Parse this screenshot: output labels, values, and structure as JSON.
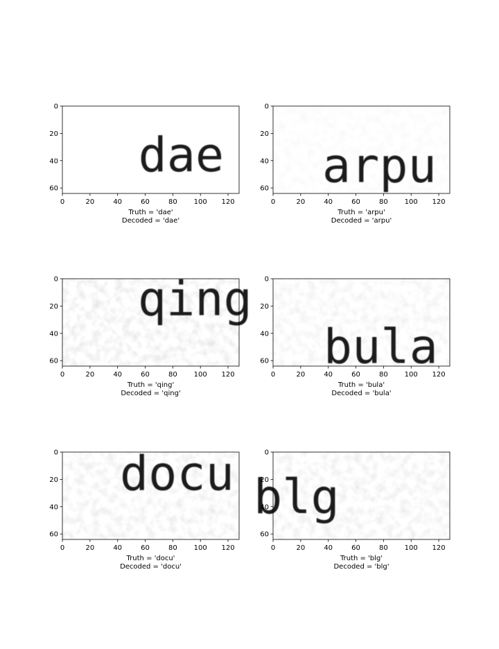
{
  "chart_data": [
    {
      "type": "image",
      "truth_label": "Truth = 'dae'",
      "decoded_label": "Decoded = 'dae'",
      "word": "dae",
      "word_center": [
        86,
        36
      ],
      "word_size": 24,
      "noise": 0.0,
      "xlim": [
        0,
        128
      ],
      "ylim": [
        0,
        64
      ],
      "xticks": [
        0,
        20,
        40,
        60,
        80,
        100,
        120
      ],
      "yticks": [
        0,
        20,
        40,
        60
      ]
    },
    {
      "type": "image",
      "truth_label": "Truth = 'arpu'",
      "decoded_label": "Decoded = 'arpu'",
      "word": "arpu",
      "word_center": [
        77,
        44
      ],
      "word_size": 24,
      "noise": 0.15,
      "xlim": [
        0,
        128
      ],
      "ylim": [
        0,
        64
      ],
      "xticks": [
        0,
        20,
        40,
        60,
        80,
        100,
        120
      ],
      "yticks": [
        0,
        20,
        40,
        60
      ]
    },
    {
      "type": "image",
      "truth_label": "Truth = 'qing'",
      "decoded_label": "Decoded = 'qing'",
      "word": "qing",
      "word_center": [
        96,
        15
      ],
      "word_size": 24,
      "noise": 0.55,
      "xlim": [
        0,
        128
      ],
      "ylim": [
        0,
        64
      ],
      "xticks": [
        0,
        20,
        40,
        60,
        80,
        100,
        120
      ],
      "yticks": [
        0,
        20,
        40,
        60
      ]
    },
    {
      "type": "image",
      "truth_label": "Truth = 'bula'",
      "decoded_label": "Decoded = 'bula'",
      "word": "bula",
      "word_center": [
        78,
        50
      ],
      "word_size": 24,
      "noise": 0.35,
      "xlim": [
        0,
        128
      ],
      "ylim": [
        0,
        64
      ],
      "xticks": [
        0,
        20,
        40,
        60,
        80,
        100,
        120
      ],
      "yticks": [
        0,
        20,
        40,
        60
      ]
    },
    {
      "type": "image",
      "truth_label": "Truth = 'docu'",
      "decoded_label": "Decoded = 'docu'",
      "word": "docu",
      "word_center": [
        83,
        16
      ],
      "word_size": 24,
      "noise": 0.45,
      "xlim": [
        0,
        128
      ],
      "ylim": [
        0,
        64
      ],
      "xticks": [
        0,
        20,
        40,
        60,
        80,
        100,
        120
      ],
      "yticks": [
        0,
        20,
        40,
        60
      ]
    },
    {
      "type": "image",
      "truth_label": "Truth = 'blg'",
      "decoded_label": "Decoded = 'blg'",
      "word": "blg",
      "word_center": [
        17,
        33
      ],
      "word_size": 24,
      "noise": 0.45,
      "xlim": [
        0,
        128
      ],
      "ylim": [
        0,
        64
      ],
      "xticks": [
        0,
        20,
        40,
        60,
        80,
        100,
        120
      ],
      "yticks": [
        0,
        20,
        40,
        60
      ]
    }
  ]
}
